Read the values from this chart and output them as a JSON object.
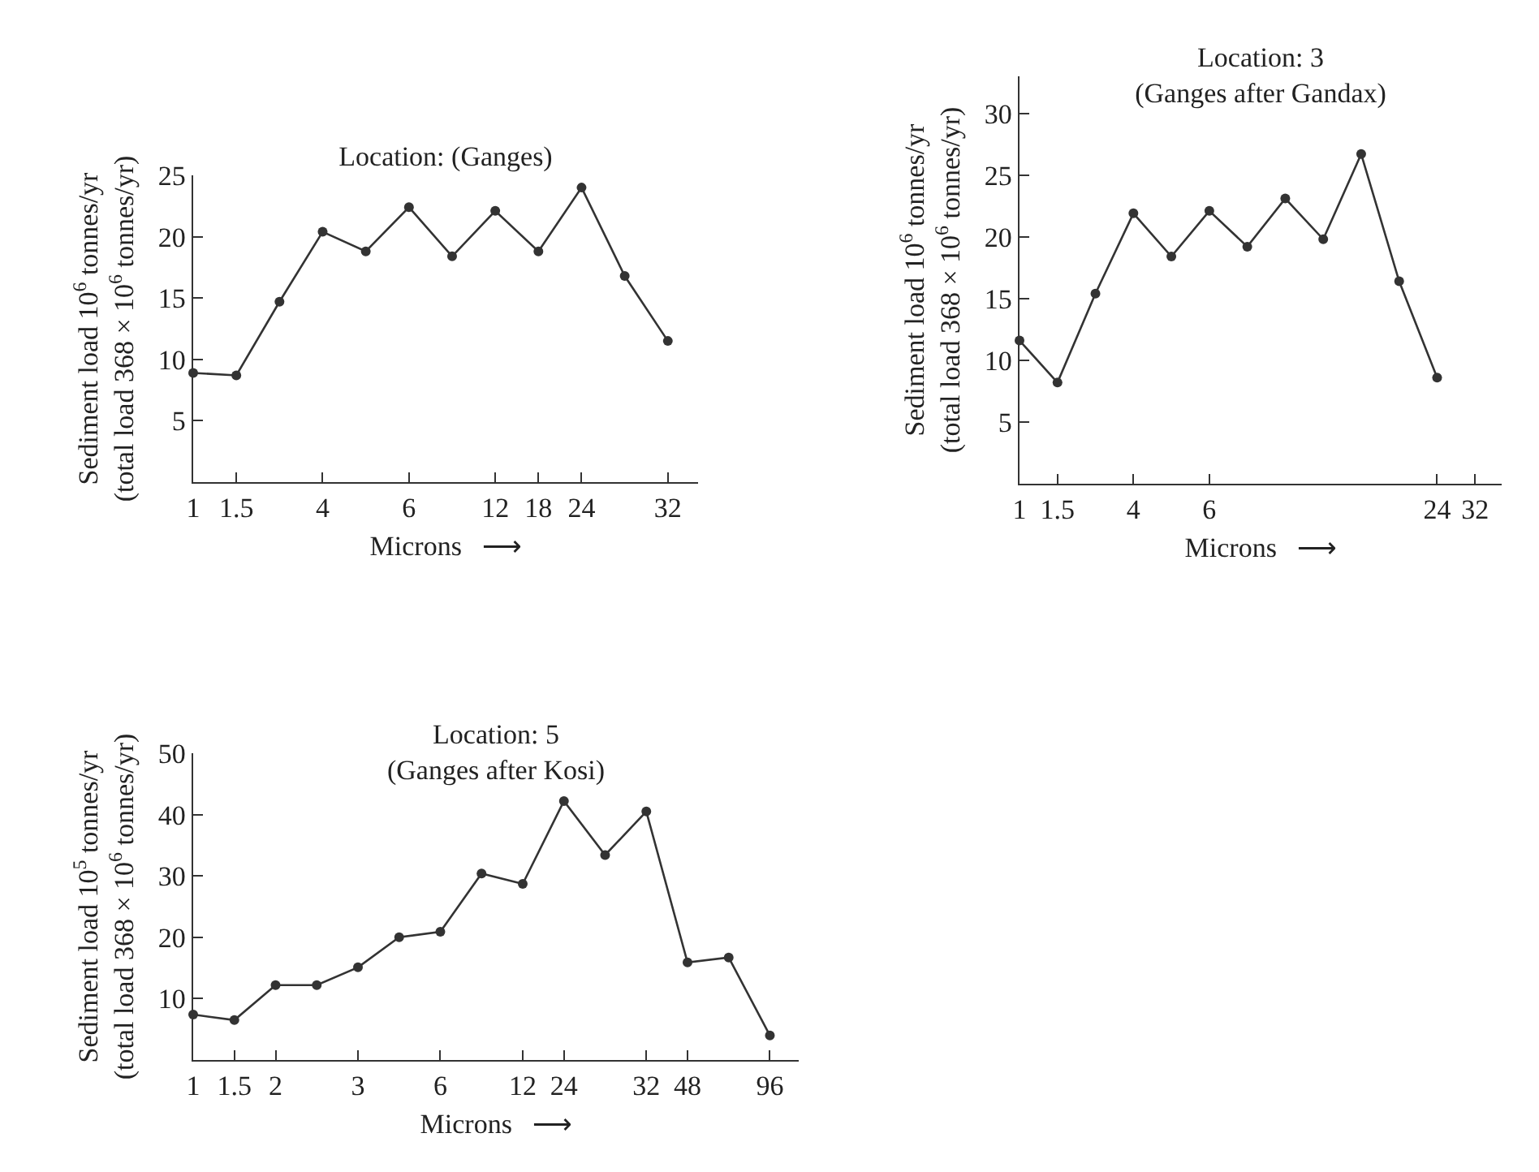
{
  "chart_data": [
    {
      "type": "line",
      "title": "Location: (Ganges)",
      "xlabel": "Microns   ⟶",
      "ylabel": "Sediment load 10$^{6}$ tonnes/yr\n(total load 368 × 10$^{6}$ tonnes/yr)",
      "marker": "circle",
      "line_style": "solid",
      "grid": false,
      "categories": [
        "1",
        "1.5",
        null,
        "4",
        null,
        "6",
        null,
        "12",
        "18",
        "24",
        null,
        "32"
      ],
      "series": [
        {
          "color": "#333333",
          "values": [
            8.9,
            8.7,
            14.7,
            20.4,
            18.8,
            22.4,
            18.4,
            22.1,
            18.8,
            24.0,
            16.8,
            11.5
          ]
        }
      ],
      "ylim": [
        0,
        25
      ],
      "yticks": [
        5,
        10,
        15,
        20,
        25
      ]
    },
    {
      "type": "line",
      "title": "Location: 3\n(Ganges after Gandax)",
      "xlabel": "Microns   ⟶",
      "ylabel": "Sediment load 10$^{6}$ tonnes/yr\n(total load 368 × 10$^{6}$ tonnes/yr)",
      "marker": "circle",
      "line_style": "solid",
      "grid": false,
      "categories": [
        "1",
        "1.5",
        null,
        "4",
        null,
        "6",
        null,
        null,
        null,
        null,
        null,
        "24",
        "32"
      ],
      "series": [
        {
          "color": "#333333",
          "values": [
            11.6,
            8.2,
            15.4,
            21.9,
            18.4,
            22.1,
            19.2,
            23.1,
            19.8,
            26.7,
            16.4,
            8.6,
            null
          ]
        }
      ],
      "ylim": [
        0,
        33
      ],
      "yticks": [
        5,
        10,
        15,
        20,
        25,
        30
      ]
    },
    {
      "type": "line",
      "title": "Location: 5\n(Ganges after Kosi)",
      "xlabel": "Microns   ⟶",
      "ylabel": "Sediment load 10$^{5}$ tonnes/yr\n(total load 368 × 10$^{6}$ tonnes/yr)",
      "marker": "circle",
      "line_style": "solid",
      "grid": false,
      "categories": [
        "1",
        "1.5",
        "2",
        null,
        "3",
        null,
        "6",
        null,
        "12",
        "24",
        null,
        "32",
        "48",
        null,
        "96"
      ],
      "series": [
        {
          "color": "#333333",
          "values": [
            7.4,
            6.5,
            12.2,
            12.2,
            15.1,
            20.0,
            20.9,
            30.4,
            28.7,
            42.2,
            33.4,
            40.5,
            15.9,
            16.7,
            4.0
          ]
        }
      ],
      "ylim": [
        0,
        50
      ],
      "yticks": [
        10,
        20,
        30,
        40,
        50
      ]
    }
  ]
}
